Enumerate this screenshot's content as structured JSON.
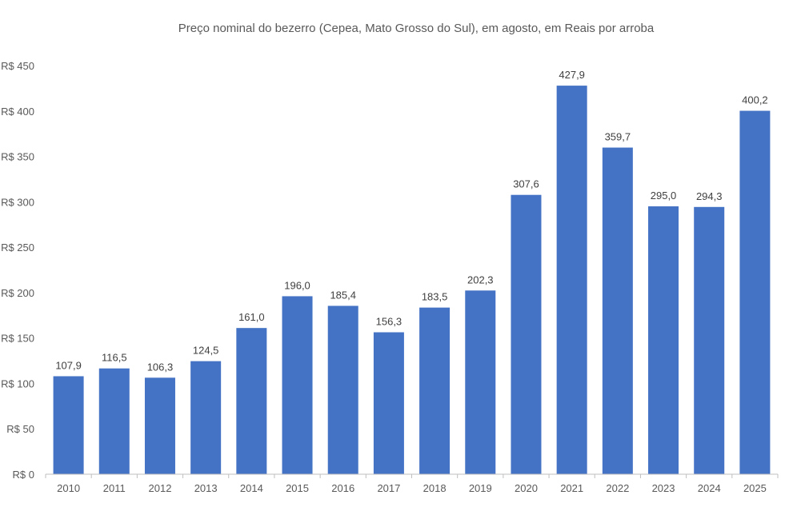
{
  "chart_data": {
    "type": "bar",
    "title": "Preço nominal do bezerro (Cepea, Mato Grosso do Sul), em agosto, em Reais por arroba",
    "xlabel": "",
    "ylabel": "",
    "categories": [
      "2010",
      "2011",
      "2012",
      "2013",
      "2014",
      "2015",
      "2016",
      "2017",
      "2018",
      "2019",
      "2020",
      "2021",
      "2022",
      "2023",
      "2024",
      "2025"
    ],
    "values": [
      107.9,
      116.5,
      106.3,
      124.5,
      161.0,
      196.0,
      185.4,
      156.3,
      183.5,
      202.3,
      307.6,
      427.9,
      359.7,
      295.0,
      294.3,
      400.2
    ],
    "data_labels": [
      "107,9",
      "116,5",
      "106,3",
      "124,5",
      "161,0",
      "196,0",
      "185,4",
      "156,3",
      "183,5",
      "202,3",
      "307,6",
      "427,9",
      "359,7",
      "295,0",
      "294,3",
      "400,2"
    ],
    "ylim": [
      0,
      450
    ],
    "yticks": [
      0,
      50,
      100,
      150,
      200,
      250,
      300,
      350,
      400,
      450
    ],
    "ytick_labels": [
      "R$ 0",
      "R$ 50",
      "R$ 100",
      "R$ 150",
      "R$ 200",
      "R$ 250",
      "R$ 300",
      "R$ 350",
      "R$ 400",
      "R$ 450"
    ],
    "grid": false,
    "legend": "none",
    "bar_color": "#4472C4"
  }
}
